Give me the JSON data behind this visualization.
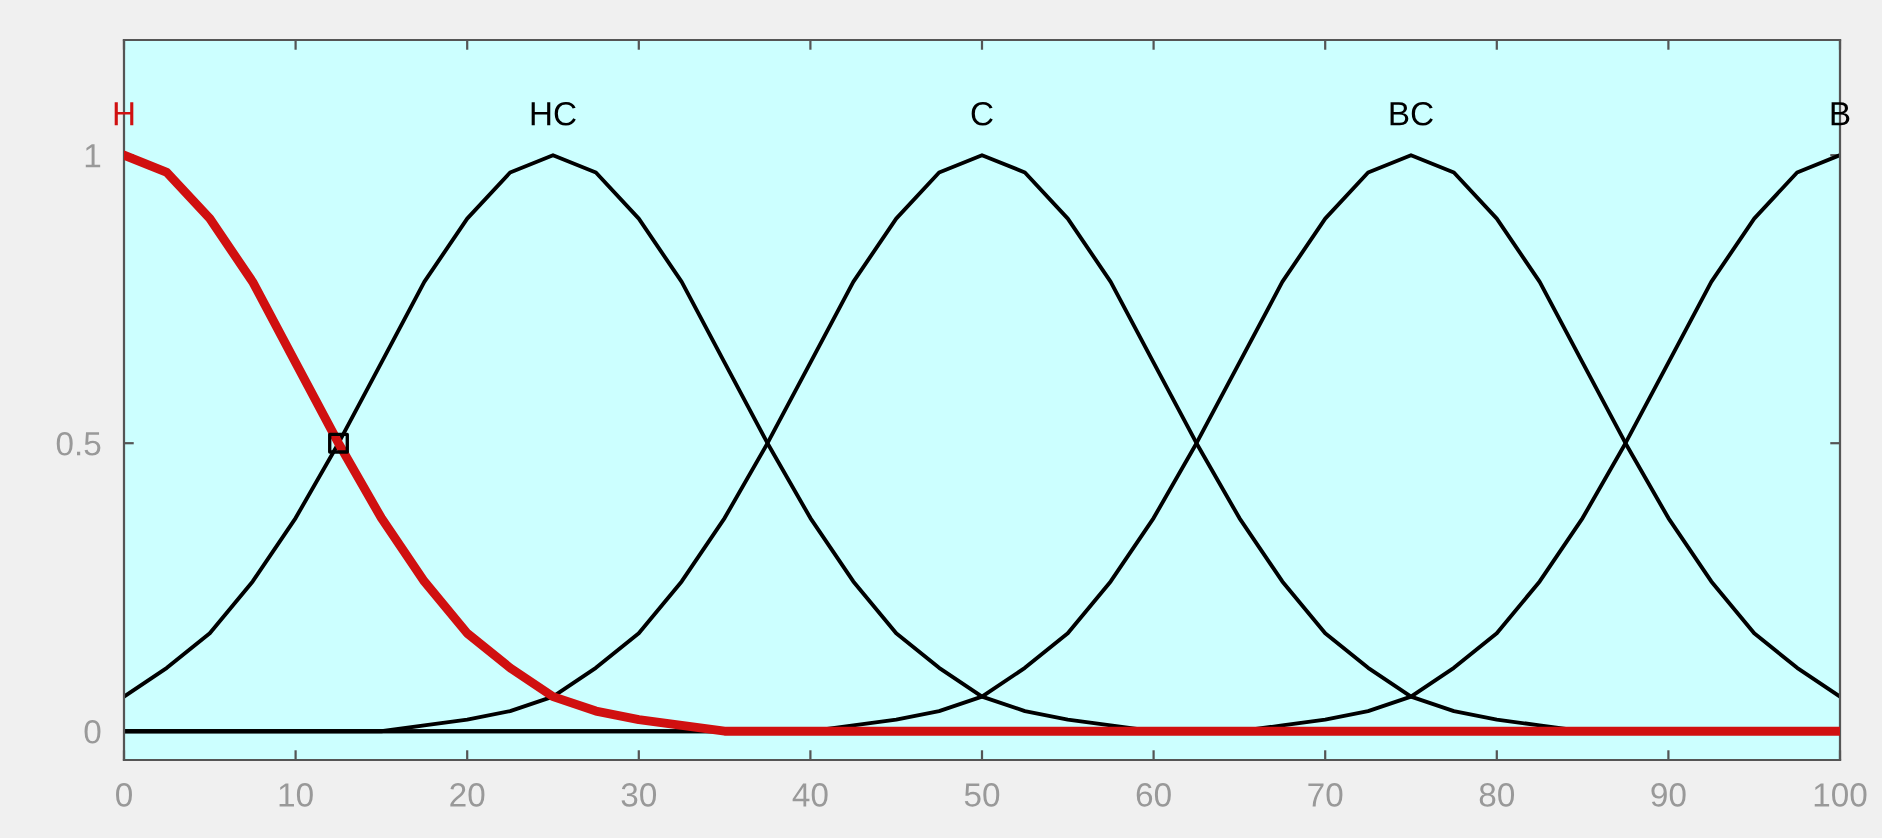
{
  "chart_data": {
    "type": "line",
    "x": [
      0,
      2.5,
      5,
      7.5,
      10,
      12.5,
      15,
      17.5,
      20,
      22.5,
      25,
      27.5,
      30,
      32.5,
      35,
      37.5,
      40,
      42.5,
      45,
      47.5,
      50,
      52.5,
      55,
      57.5,
      60,
      62.5,
      65,
      67.5,
      70,
      72.5,
      75,
      77.5,
      80,
      82.5,
      85,
      87.5,
      90,
      92.5,
      95,
      97.5,
      100
    ],
    "series": [
      {
        "name": "H",
        "color": "#d01010",
        "values": [
          1,
          0.97,
          0.89,
          0.78,
          0.64,
          0.5,
          0.37,
          0.26,
          0.17,
          0.11,
          0.06,
          0.035,
          0.02,
          0.01,
          0,
          0,
          0,
          0,
          0,
          0,
          0,
          0,
          0,
          0,
          0,
          0,
          0,
          0,
          0,
          0,
          0,
          0,
          0,
          0,
          0,
          0,
          0,
          0,
          0,
          0,
          0
        ]
      },
      {
        "name": "HC",
        "color": "#000000",
        "values": [
          0.06,
          0.11,
          0.17,
          0.26,
          0.37,
          0.5,
          0.64,
          0.78,
          0.89,
          0.97,
          1,
          0.97,
          0.89,
          0.78,
          0.64,
          0.5,
          0.37,
          0.26,
          0.17,
          0.11,
          0.06,
          0.035,
          0.02,
          0.01,
          0,
          0,
          0,
          0,
          0,
          0,
          0,
          0,
          0,
          0,
          0,
          0,
          0,
          0,
          0,
          0,
          0
        ]
      },
      {
        "name": "C",
        "color": "#000000",
        "values": [
          0,
          0,
          0,
          0,
          0,
          0,
          0,
          0.01,
          0.02,
          0.035,
          0.06,
          0.11,
          0.17,
          0.26,
          0.37,
          0.5,
          0.64,
          0.78,
          0.89,
          0.97,
          1,
          0.97,
          0.89,
          0.78,
          0.64,
          0.5,
          0.37,
          0.26,
          0.17,
          0.11,
          0.06,
          0.035,
          0.02,
          0.01,
          0,
          0,
          0,
          0,
          0,
          0,
          0
        ]
      },
      {
        "name": "BC",
        "color": "#000000",
        "values": [
          0,
          0,
          0,
          0,
          0,
          0,
          0,
          0,
          0,
          0,
          0,
          0,
          0,
          0,
          0,
          0,
          0,
          0.01,
          0.02,
          0.035,
          0.06,
          0.11,
          0.17,
          0.26,
          0.37,
          0.5,
          0.64,
          0.78,
          0.89,
          0.97,
          1,
          0.97,
          0.89,
          0.78,
          0.64,
          0.5,
          0.37,
          0.26,
          0.17,
          0.11,
          0.06
        ]
      },
      {
        "name": "B",
        "color": "#000000",
        "values": [
          0,
          0,
          0,
          0,
          0,
          0,
          0,
          0,
          0,
          0,
          0,
          0,
          0,
          0,
          0,
          0,
          0,
          0,
          0,
          0,
          0,
          0,
          0,
          0,
          0,
          0,
          0,
          0.01,
          0.02,
          0.035,
          0.06,
          0.11,
          0.17,
          0.26,
          0.37,
          0.5,
          0.64,
          0.78,
          0.89,
          0.97,
          1
        ]
      },
      {
        "type": "scatter",
        "color": "#000000",
        "marker": "square",
        "x": [
          12.5
        ],
        "values": [
          0.5
        ]
      }
    ],
    "xlim": [
      0,
      100
    ],
    "ylim": [
      -0.05,
      1.2
    ],
    "xticks": [
      0,
      10,
      20,
      30,
      40,
      50,
      60,
      70,
      80,
      90,
      100
    ],
    "yticks": [
      0,
      0.5,
      1
    ],
    "grid": false,
    "legend": false,
    "line_style": "solid"
  }
}
